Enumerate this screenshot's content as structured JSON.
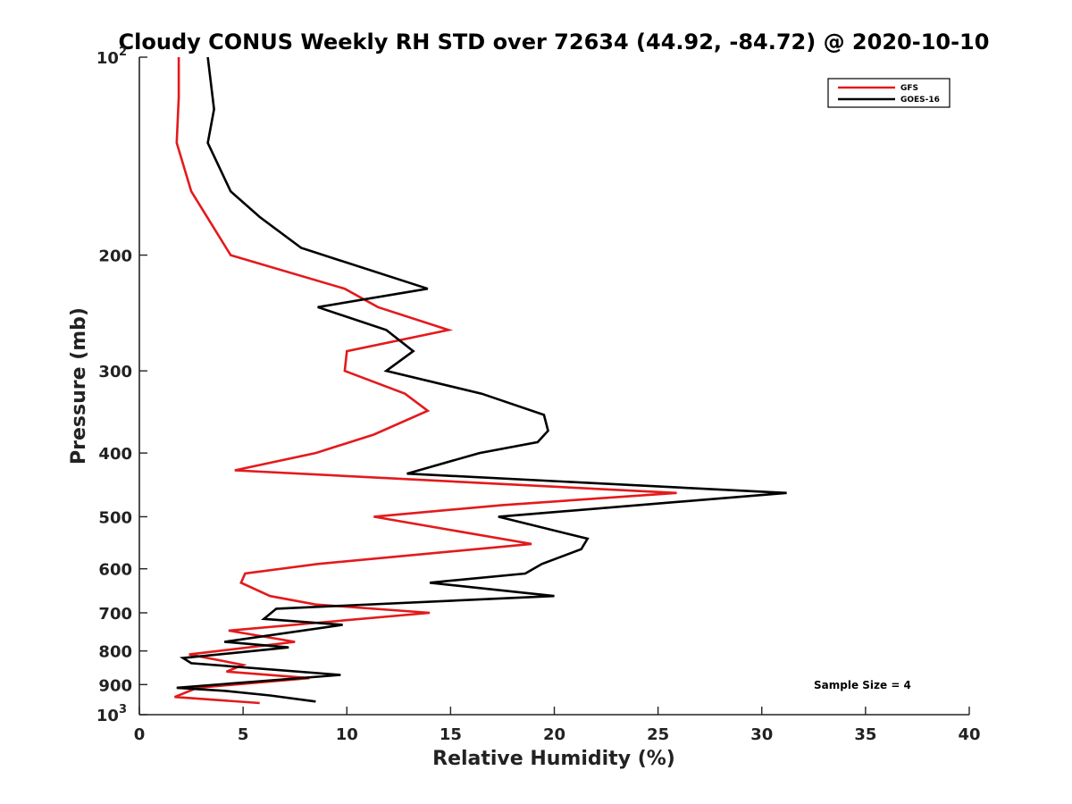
{
  "chart_data": {
    "type": "line",
    "title": "Cloudy CONUS Weekly RH STD over 72634 (44.92, -84.72) @ 2020-10-10",
    "xlabel": "Relative Humidity (%)",
    "ylabel": "Pressure (mb)",
    "xlim": [
      0,
      40
    ],
    "ylim": [
      100,
      1000
    ],
    "y_scale": "log",
    "y_reversed": true,
    "grid": false,
    "legend_position": "top-right",
    "annotation": "Sample Size = 4",
    "x_ticks": [
      "0",
      "5",
      "10",
      "15",
      "20",
      "25",
      "30",
      "35",
      "40"
    ],
    "y_ticks": [
      {
        "value": 100,
        "label": "10",
        "sup": "2"
      },
      {
        "value": 200,
        "label": "200"
      },
      {
        "value": 300,
        "label": "300"
      },
      {
        "value": 400,
        "label": "400"
      },
      {
        "value": 500,
        "label": "500"
      },
      {
        "value": 600,
        "label": "600"
      },
      {
        "value": 700,
        "label": "700"
      },
      {
        "value": 800,
        "label": "800"
      },
      {
        "value": 900,
        "label": "900"
      },
      {
        "value": 1000,
        "label": "10",
        "sup": "3"
      }
    ],
    "series": [
      {
        "name": "GFS",
        "color": "#e31a1c",
        "points": [
          [
            1.9,
            100
          ],
          [
            1.9,
            115
          ],
          [
            1.8,
            135
          ],
          [
            2.5,
            160
          ],
          [
            4.4,
            200
          ],
          [
            9.9,
            225
          ],
          [
            11.5,
            240
          ],
          [
            14.9,
            260
          ],
          [
            10.0,
            280
          ],
          [
            9.9,
            300
          ],
          [
            12.8,
            325
          ],
          [
            13.9,
            345
          ],
          [
            11.3,
            375
          ],
          [
            8.5,
            400
          ],
          [
            4.6,
            425
          ],
          [
            25.9,
            460
          ],
          [
            17.5,
            480
          ],
          [
            11.3,
            500
          ],
          [
            18.9,
            550
          ],
          [
            8.6,
            590
          ],
          [
            5.1,
            610
          ],
          [
            4.9,
            630
          ],
          [
            6.3,
            660
          ],
          [
            8.5,
            680
          ],
          [
            14.0,
            700
          ],
          [
            4.3,
            745
          ],
          [
            7.5,
            775
          ],
          [
            2.4,
            810
          ],
          [
            5.0,
            840
          ],
          [
            4.2,
            860
          ],
          [
            8.2,
            880
          ],
          [
            2.8,
            910
          ],
          [
            1.7,
            940
          ],
          [
            5.8,
            960
          ]
        ]
      },
      {
        "name": "GOES-16",
        "color": "#000000",
        "points": [
          [
            3.3,
            100
          ],
          [
            3.6,
            120
          ],
          [
            3.3,
            135
          ],
          [
            4.4,
            160
          ],
          [
            5.8,
            175
          ],
          [
            7.8,
            195
          ],
          [
            13.9,
            225
          ],
          [
            8.6,
            240
          ],
          [
            11.9,
            260
          ],
          [
            13.2,
            280
          ],
          [
            11.9,
            300
          ],
          [
            16.5,
            325
          ],
          [
            19.5,
            350
          ],
          [
            19.7,
            370
          ],
          [
            19.2,
            385
          ],
          [
            16.4,
            400
          ],
          [
            12.9,
            430
          ],
          [
            31.2,
            460
          ],
          [
            17.3,
            500
          ],
          [
            21.6,
            540
          ],
          [
            21.3,
            560
          ],
          [
            19.4,
            590
          ],
          [
            18.6,
            610
          ],
          [
            14.0,
            630
          ],
          [
            20.0,
            660
          ],
          [
            6.6,
            690
          ],
          [
            6.0,
            715
          ],
          [
            9.8,
            730
          ],
          [
            4.1,
            775
          ],
          [
            7.2,
            790
          ],
          [
            2.1,
            820
          ],
          [
            2.5,
            835
          ],
          [
            9.7,
            870
          ],
          [
            1.8,
            910
          ],
          [
            4.1,
            920
          ],
          [
            6.3,
            935
          ],
          [
            8.5,
            955
          ]
        ]
      }
    ]
  }
}
